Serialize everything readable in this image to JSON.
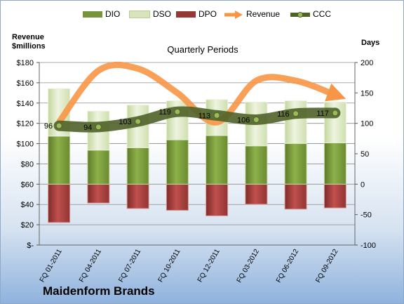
{
  "company": "Maidenform Brands",
  "chart_data": {
    "type": "bar",
    "subtitle": "Quarterly Periods",
    "ylabel_left": "Revenue $millions",
    "ylabel_right": "Days",
    "categories": [
      "FQ 01-2011",
      "FQ 04-2011",
      "FQ 07-2011",
      "FQ 10-2011",
      "FQ 12-2011",
      "FQ 03-2012",
      "FQ 06-2012",
      "FQ 09-2012"
    ],
    "left_axis": {
      "ylim": [
        0,
        180
      ],
      "ticks": [
        "$-",
        "$20",
        "$40",
        "$60",
        "$80",
        "$100",
        "$120",
        "$140",
        "$160",
        "$180"
      ]
    },
    "right_axis": {
      "ylim": [
        -100,
        200
      ],
      "ticks": [
        "-100",
        "-50",
        "0",
        "50",
        "100",
        "150",
        "200"
      ]
    },
    "legend": [
      "DIO",
      "DSO",
      "DPO",
      "Revenue",
      "CCC"
    ],
    "series": [
      {
        "name": "DIO",
        "axis": "right",
        "values": [
          79,
          56,
          60,
          73,
          80,
          63,
          67,
          68
        ]
      },
      {
        "name": "DSO",
        "axis": "right",
        "values": [
          78,
          64,
          70,
          64,
          59,
          72,
          70,
          67
        ]
      },
      {
        "name": "DPO",
        "axis": "right",
        "values": [
          -63,
          -31,
          -40,
          -43,
          -52,
          -33,
          -41,
          -39
        ]
      },
      {
        "name": "Revenue",
        "axis": "left",
        "values": [
          121,
          172,
          174,
          150,
          121,
          162,
          162,
          148
        ]
      },
      {
        "name": "CCC",
        "axis": "right",
        "values": [
          96,
          94,
          103,
          119,
          113,
          106,
          116,
          117
        ]
      }
    ],
    "ccc_labels": [
      "96",
      "94",
      "103",
      "119",
      "113",
      "106",
      "116",
      "117"
    ],
    "colors": {
      "dio": "#77933c",
      "dio_light": "#c3d69b",
      "dso": "#d7e4bd",
      "dso_edge": "#ebf1de",
      "dpo": "#953735",
      "dpo_light": "#d99694",
      "revenue": "#f79646",
      "ccc": "#4f6228",
      "ccc_marker": "#9bbb59"
    }
  }
}
